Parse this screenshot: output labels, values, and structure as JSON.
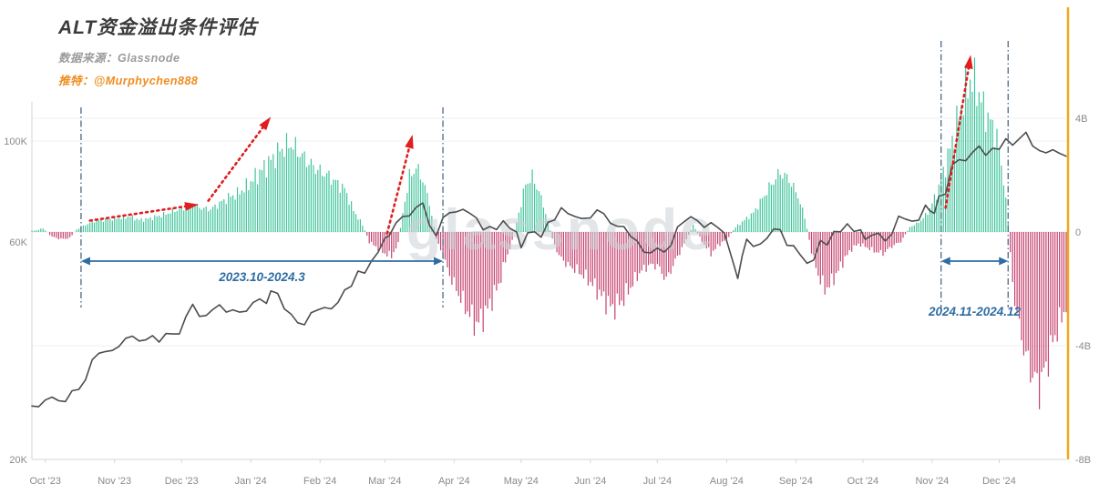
{
  "header": {
    "title": "ALT资金溢出条件评估",
    "source_label": "数据来源：",
    "source_value": "Glassnode",
    "twitter_label": "推特：",
    "twitter_value": "@Murphychen888"
  },
  "watermark": "glassnode",
  "colors": {
    "bar_positive": "#2fbf92",
    "bar_negative": "#c03263",
    "price_line": "#4d4d4d",
    "annotation_blue": "#2e6ca4",
    "annotation_red": "#e01e1e",
    "vline": "#4a6785",
    "right_edge_line": "#f2a71b",
    "axis_text": "#8a8a8a",
    "grid": "#efefef",
    "axis_line": "#d6d6d6",
    "watermark": "#cdd2d7"
  },
  "chart_data": {
    "type": "line+bar",
    "x_unit": "days from 2023-09-25",
    "x_range": [
      0,
      463
    ],
    "x_ticks": [
      {
        "day": 6,
        "label": "Oct '23"
      },
      {
        "day": 37,
        "label": "Nov '23"
      },
      {
        "day": 67,
        "label": "Dec '23"
      },
      {
        "day": 98,
        "label": "Jan '24"
      },
      {
        "day": 129,
        "label": "Feb '24"
      },
      {
        "day": 158,
        "label": "Mar '24"
      },
      {
        "day": 189,
        "label": "Apr '24"
      },
      {
        "day": 219,
        "label": "May '24"
      },
      {
        "day": 250,
        "label": "Jun '24"
      },
      {
        "day": 280,
        "label": "Jul '24"
      },
      {
        "day": 311,
        "label": "Aug '24"
      },
      {
        "day": 342,
        "label": "Sep '24"
      },
      {
        "day": 372,
        "label": "Oct '24"
      },
      {
        "day": 403,
        "label": "Nov '24"
      },
      {
        "day": 433,
        "label": "Dec '24"
      }
    ],
    "left_axis": {
      "scale": "log",
      "unit": "USD (thousands)",
      "ticks": [
        {
          "v": 100,
          "label": "100K"
        },
        {
          "v": 60,
          "label": "60K"
        },
        {
          "v": 20,
          "label": "20K"
        }
      ]
    },
    "right_axis": {
      "scale": "linear",
      "unit": "USD (billions)",
      "ticks": [
        {
          "v": 4,
          "label": "4B"
        },
        {
          "v": 0,
          "label": "0"
        },
        {
          "v": -4,
          "label": "-4B"
        },
        {
          "v": -8,
          "label": "-8B"
        }
      ]
    },
    "price_series": {
      "name": "BTC price (K USD, log scale)",
      "points": [
        [
          0,
          26.2
        ],
        [
          3,
          26.1
        ],
        [
          6,
          27.0
        ],
        [
          9,
          27.4
        ],
        [
          12,
          26.9
        ],
        [
          15,
          26.8
        ],
        [
          18,
          28.3
        ],
        [
          21,
          28.5
        ],
        [
          24,
          29.9
        ],
        [
          27,
          33.1
        ],
        [
          30,
          34.2
        ],
        [
          33,
          34.5
        ],
        [
          36,
          34.7
        ],
        [
          39,
          35.4
        ],
        [
          42,
          36.9
        ],
        [
          45,
          37.3
        ],
        [
          48,
          36.4
        ],
        [
          51,
          36.6
        ],
        [
          54,
          37.4
        ],
        [
          57,
          36.2
        ],
        [
          60,
          37.8
        ],
        [
          63,
          37.7
        ],
        [
          66,
          37.7
        ],
        [
          69,
          41.2
        ],
        [
          72,
          43.8
        ],
        [
          75,
          41.2
        ],
        [
          78,
          41.4
        ],
        [
          81,
          42.7
        ],
        [
          84,
          43.7
        ],
        [
          87,
          42.1
        ],
        [
          90,
          42.6
        ],
        [
          93,
          42.1
        ],
        [
          96,
          42.3
        ],
        [
          99,
          44.2
        ],
        [
          102,
          45.0
        ],
        [
          105,
          44.0
        ],
        [
          107,
          46.9
        ],
        [
          110,
          46.3
        ],
        [
          113,
          42.8
        ],
        [
          116,
          41.7
        ],
        [
          119,
          39.9
        ],
        [
          122,
          39.5
        ],
        [
          125,
          42.0
        ],
        [
          128,
          42.6
        ],
        [
          131,
          43.1
        ],
        [
          134,
          42.8
        ],
        [
          137,
          44.2
        ],
        [
          140,
          47.1
        ],
        [
          143,
          48.0
        ],
        [
          146,
          51.8
        ],
        [
          149,
          51.3
        ],
        [
          152,
          54.5
        ],
        [
          155,
          57.0
        ],
        [
          158,
          61.2
        ],
        [
          160,
          62.0
        ],
        [
          163,
          66.1
        ],
        [
          166,
          68.3
        ],
        [
          169,
          68.5
        ],
        [
          172,
          71.5
        ],
        [
          175,
          73.1
        ],
        [
          178,
          65.3
        ],
        [
          181,
          61.9
        ],
        [
          184,
          67.9
        ],
        [
          187,
          69.6
        ],
        [
          190,
          69.9
        ],
        [
          193,
          70.8
        ],
        [
          196,
          69.4
        ],
        [
          199,
          67.8
        ],
        [
          202,
          63.8
        ],
        [
          205,
          64.9
        ],
        [
          208,
          63.9
        ],
        [
          211,
          66.8
        ],
        [
          214,
          64.3
        ],
        [
          217,
          63.1
        ],
        [
          219,
          58.3
        ],
        [
          222,
          62.9
        ],
        [
          225,
          63.2
        ],
        [
          228,
          61.5
        ],
        [
          231,
          66.3
        ],
        [
          234,
          67.1
        ],
        [
          237,
          71.4
        ],
        [
          240,
          69.3
        ],
        [
          243,
          68.3
        ],
        [
          246,
          67.6
        ],
        [
          250,
          67.8
        ],
        [
          253,
          70.6
        ],
        [
          256,
          69.3
        ],
        [
          259,
          66.0
        ],
        [
          262,
          65.0
        ],
        [
          265,
          64.9
        ],
        [
          268,
          61.8
        ],
        [
          271,
          60.3
        ],
        [
          274,
          57.0
        ],
        [
          277,
          56.8
        ],
        [
          280,
          58.2
        ],
        [
          283,
          57.0
        ],
        [
          286,
          58.9
        ],
        [
          289,
          64.8
        ],
        [
          292,
          66.5
        ],
        [
          295,
          68.2
        ],
        [
          298,
          66.8
        ],
        [
          301,
          64.6
        ],
        [
          304,
          66.2
        ],
        [
          307,
          64.6
        ],
        [
          310,
          62.8
        ],
        [
          312,
          58.2
        ],
        [
          314,
          54.0
        ],
        [
          316,
          49.9
        ],
        [
          318,
          56.0
        ],
        [
          320,
          60.9
        ],
        [
          323,
          58.7
        ],
        [
          326,
          59.4
        ],
        [
          329,
          61.1
        ],
        [
          332,
          64.1
        ],
        [
          335,
          63.9
        ],
        [
          338,
          59.0
        ],
        [
          341,
          58.9
        ],
        [
          344,
          56.2
        ],
        [
          347,
          53.9
        ],
        [
          350,
          54.8
        ],
        [
          353,
          60.5
        ],
        [
          356,
          59.1
        ],
        [
          359,
          63.3
        ],
        [
          362,
          63.2
        ],
        [
          365,
          65.8
        ],
        [
          368,
          63.3
        ],
        [
          371,
          63.8
        ],
        [
          373,
          60.8
        ],
        [
          376,
          62.1
        ],
        [
          379,
          62.8
        ],
        [
          382,
          60.3
        ],
        [
          385,
          62.5
        ],
        [
          388,
          68.4
        ],
        [
          391,
          67.4
        ],
        [
          394,
          66.7
        ],
        [
          397,
          67.0
        ],
        [
          400,
          72.3
        ],
        [
          402,
          70.2
        ],
        [
          404,
          69.4
        ],
        [
          406,
          75.6
        ],
        [
          409,
          76.5
        ],
        [
          412,
          88.7
        ],
        [
          415,
          91.0
        ],
        [
          418,
          90.5
        ],
        [
          421,
          94.3
        ],
        [
          424,
          97.5
        ],
        [
          427,
          93.0
        ],
        [
          430,
          96.4
        ],
        [
          433,
          95.9
        ],
        [
          436,
          101.2
        ],
        [
          439,
          97.9
        ],
        [
          442,
          101.1
        ],
        [
          445,
          104.5
        ],
        [
          448,
          97.5
        ],
        [
          451,
          95.3
        ],
        [
          454,
          94.2
        ],
        [
          457,
          95.7
        ],
        [
          460,
          94.0
        ],
        [
          463,
          92.6
        ]
      ]
    },
    "flow_series": {
      "name": "Net capital flow (B USD)",
      "points": [
        [
          1,
          0.05
        ],
        [
          5,
          0.15
        ],
        [
          9,
          -0.2
        ],
        [
          13,
          -0.3
        ],
        [
          17,
          -0.25
        ],
        [
          20,
          0.1
        ],
        [
          24,
          0.3
        ],
        [
          28,
          0.45
        ],
        [
          32,
          0.5
        ],
        [
          36,
          0.55
        ],
        [
          40,
          0.6
        ],
        [
          44,
          0.65
        ],
        [
          48,
          0.5
        ],
        [
          52,
          0.55
        ],
        [
          56,
          0.65
        ],
        [
          60,
          0.75
        ],
        [
          64,
          0.9
        ],
        [
          68,
          1.0
        ],
        [
          72,
          1.15
        ],
        [
          76,
          1.0
        ],
        [
          80,
          0.95
        ],
        [
          84,
          1.2
        ],
        [
          88,
          1.45
        ],
        [
          92,
          1.6
        ],
        [
          96,
          1.9
        ],
        [
          100,
          2.3
        ],
        [
          104,
          2.7
        ],
        [
          108,
          3.1
        ],
        [
          112,
          3.5
        ],
        [
          116,
          3.7
        ],
        [
          120,
          3.3
        ],
        [
          124,
          2.9
        ],
        [
          128,
          2.6
        ],
        [
          132,
          2.4
        ],
        [
          136,
          2.1
        ],
        [
          140,
          1.8
        ],
        [
          144,
          0.9
        ],
        [
          148,
          0.3
        ],
        [
          151,
          -0.4
        ],
        [
          155,
          -0.7
        ],
        [
          158,
          -0.9
        ],
        [
          161,
          -1.0
        ],
        [
          164,
          -0.5
        ],
        [
          166,
          0.8
        ],
        [
          169,
          2.3
        ],
        [
          172,
          2.7
        ],
        [
          175,
          2.2
        ],
        [
          178,
          1.2
        ],
        [
          181,
          -0.3
        ],
        [
          184,
          -1.0
        ],
        [
          187,
          -1.8
        ],
        [
          191,
          -2.6
        ],
        [
          195,
          -3.3
        ],
        [
          199,
          -3.9
        ],
        [
          203,
          -3.4
        ],
        [
          206,
          -2.8
        ],
        [
          209,
          -2.2
        ],
        [
          212,
          -1.2
        ],
        [
          215,
          -0.4
        ],
        [
          218,
          0.8
        ],
        [
          221,
          2.0
        ],
        [
          224,
          2.3
        ],
        [
          227,
          1.7
        ],
        [
          230,
          0.8
        ],
        [
          233,
          -0.3
        ],
        [
          236,
          -1.0
        ],
        [
          240,
          -1.4
        ],
        [
          244,
          -1.6
        ],
        [
          248,
          -1.9
        ],
        [
          252,
          -2.3
        ],
        [
          256,
          -2.8
        ],
        [
          260,
          -3.2
        ],
        [
          264,
          -2.9
        ],
        [
          268,
          -2.3
        ],
        [
          272,
          -1.7
        ],
        [
          276,
          -1.4
        ],
        [
          280,
          -1.4
        ],
        [
          284,
          -2.0
        ],
        [
          288,
          -1.2
        ],
        [
          292,
          -0.5
        ],
        [
          296,
          0.3
        ],
        [
          300,
          -0.4
        ],
        [
          304,
          -0.9
        ],
        [
          308,
          -0.5
        ],
        [
          311,
          -0.3
        ],
        [
          315,
          0.2
        ],
        [
          319,
          0.5
        ],
        [
          323,
          0.8
        ],
        [
          327,
          1.4
        ],
        [
          331,
          2.0
        ],
        [
          335,
          2.5
        ],
        [
          339,
          2.2
        ],
        [
          343,
          1.5
        ],
        [
          346,
          0.6
        ],
        [
          349,
          -0.8
        ],
        [
          352,
          -1.8
        ],
        [
          355,
          -2.4
        ],
        [
          358,
          -2.1
        ],
        [
          361,
          -1.6
        ],
        [
          364,
          -1.1
        ],
        [
          367,
          -0.7
        ],
        [
          370,
          -0.5
        ],
        [
          373,
          -0.6
        ],
        [
          377,
          -0.8
        ],
        [
          381,
          -0.9
        ],
        [
          385,
          -0.6
        ],
        [
          389,
          -0.4
        ],
        [
          393,
          0.2
        ],
        [
          397,
          0.4
        ],
        [
          401,
          0.8
        ],
        [
          405,
          1.6
        ],
        [
          409,
          2.8
        ],
        [
          413,
          4.2
        ],
        [
          417,
          5.6
        ],
        [
          420,
          6.4
        ],
        [
          423,
          6.1
        ],
        [
          426,
          5.2
        ],
        [
          429,
          4.6
        ],
        [
          432,
          4.0
        ],
        [
          435,
          2.2
        ],
        [
          437,
          0.4
        ],
        [
          439,
          -2.2
        ],
        [
          442,
          -4.0
        ],
        [
          445,
          -5.2
        ],
        [
          448,
          -6.0
        ],
        [
          451,
          -6.5
        ],
        [
          454,
          -5.6
        ],
        [
          457,
          -4.6
        ],
        [
          460,
          -3.8
        ],
        [
          463,
          -3.1
        ]
      ]
    },
    "annotations": {
      "periods": [
        {
          "label": "2023.10-2024.3",
          "start_day": 22,
          "end_day": 184
        },
        {
          "label": "2024.11-2024.12",
          "start_day": 407,
          "end_day": 437
        }
      ],
      "trend_arrows": [
        {
          "from": [
            26,
            0.4
          ],
          "to": [
            73,
            0.95
          ]
        },
        {
          "from": [
            79,
            1.1
          ],
          "to": [
            106,
            3.95
          ]
        },
        {
          "from": [
            159,
            -0.05
          ],
          "to": [
            170,
            3.3
          ]
        },
        {
          "from": [
            409,
            0.85
          ],
          "to": [
            420,
            6.1
          ]
        }
      ]
    }
  }
}
